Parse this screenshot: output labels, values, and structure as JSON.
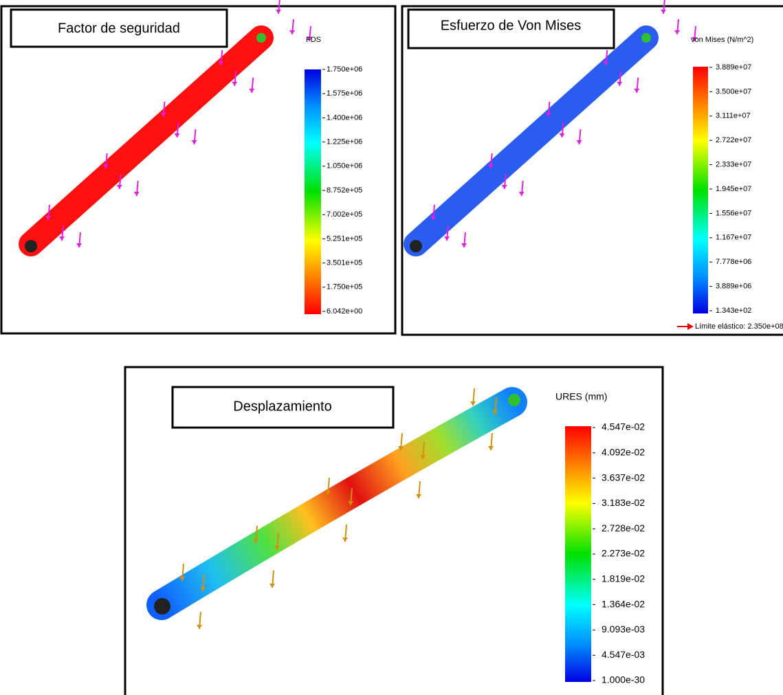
{
  "panels": [
    {
      "title": "Factor de seguridad",
      "legend_title": "FDS",
      "legend_labels": [
        "1.750e+06",
        "1.575e+06",
        "1.400e+06",
        "1.225e+06",
        "1.050e+06",
        "8.752e+05",
        "7.002e+05",
        "5.251e+05",
        "3.501e+05",
        "1.750e+05",
        "6.042e+00"
      ]
    },
    {
      "title": "Esfuerzo de Von Mises",
      "legend_title": "von Mises (N/m^2)",
      "legend_labels": [
        "3.889e+07",
        "3.500e+07",
        "3.111e+07",
        "2.722e+07",
        "2.333e+07",
        "1.945e+07",
        "1.556e+07",
        "1.167e+07",
        "7.778e+06",
        "3.889e+06",
        "1.343e+02"
      ],
      "note": "Límite elástico: 2.350e+08"
    },
    {
      "title": "Desplazamiento",
      "legend_title": "URES (mm)",
      "legend_labels": [
        "4.547e-02",
        "4.092e-02",
        "3.637e-02",
        "3.183e-02",
        "2.728e-02",
        "2.273e-02",
        "1.819e-02",
        "1.364e-02",
        "9.093e-03",
        "4.547e-03",
        "1.000e-30"
      ]
    }
  ]
}
